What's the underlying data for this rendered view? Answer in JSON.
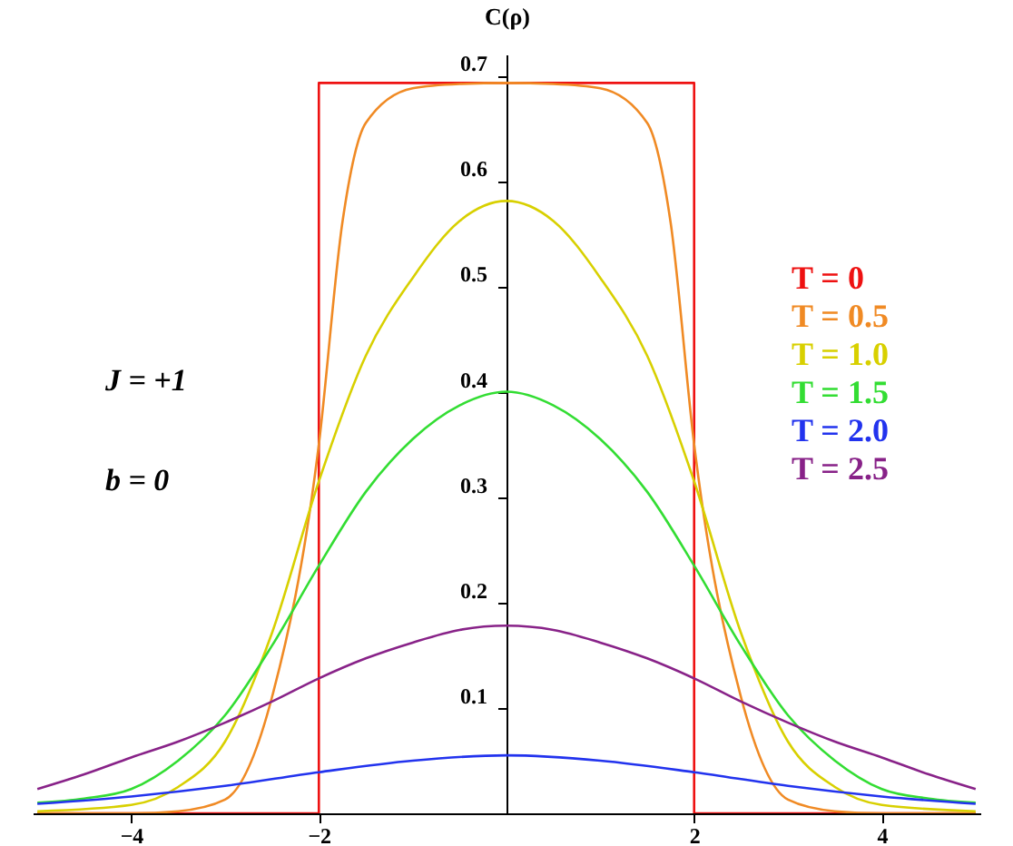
{
  "chart_data": {
    "type": "line",
    "ylabel": "C(ρ)",
    "xlim": [
      -5.05,
      5.05
    ],
    "ylim": [
      0,
      0.72
    ],
    "xticks": [
      -4,
      -2,
      2,
      4
    ],
    "yticks": [
      0.1,
      0.2,
      0.3,
      0.4,
      0.5,
      0.6,
      0.7
    ],
    "grid": false,
    "legend": "right",
    "marker": "none",
    "line_style": "solid",
    "annotations": [
      "J = +1",
      "b = 0"
    ],
    "series": [
      {
        "name": "T = 0",
        "color": "#ee1111",
        "x": [
          -5,
          -2,
          -2,
          2,
          2,
          5
        ],
        "values": [
          0,
          0,
          0.693,
          0.693,
          0,
          0
        ]
      },
      {
        "name": "T = 0.5",
        "color": "#f08a24",
        "x": [
          -5,
          -4,
          -3.5,
          -3,
          -2.5,
          -2,
          -1.75,
          -1.5,
          -1,
          -0.5,
          0,
          0.5,
          1,
          1.5,
          1.75,
          2,
          2.5,
          3,
          3.5,
          4,
          5
        ],
        "values": [
          0,
          0,
          0.002,
          0.013,
          0.11,
          0.35,
          0.56,
          0.655,
          0.688,
          0.692,
          0.693,
          0.692,
          0.688,
          0.655,
          0.56,
          0.35,
          0.11,
          0.013,
          0.002,
          0,
          0
        ]
      },
      {
        "name": "T = 1.0",
        "color": "#d8d000",
        "x": [
          -5,
          -4,
          -3.5,
          -3,
          -2.5,
          -2,
          -1.5,
          -1,
          -0.5,
          0,
          0.5,
          1,
          1.5,
          2,
          2.5,
          3,
          3.5,
          4,
          5
        ],
        "values": [
          0.002,
          0.008,
          0.025,
          0.068,
          0.171,
          0.315,
          0.434,
          0.508,
          0.562,
          0.581,
          0.562,
          0.508,
          0.434,
          0.315,
          0.171,
          0.068,
          0.025,
          0.008,
          0.002
        ]
      },
      {
        "name": "T = 1.5",
        "color": "#33dd33",
        "x": [
          -5,
          -4.5,
          -4,
          -3.5,
          -3,
          -2.5,
          -2,
          -1.5,
          -1,
          -0.5,
          0,
          0.5,
          1,
          1.5,
          2,
          2.5,
          3,
          3.5,
          4,
          4.5,
          5
        ],
        "values": [
          0.01,
          0.014,
          0.023,
          0.05,
          0.093,
          0.159,
          0.235,
          0.305,
          0.355,
          0.387,
          0.4,
          0.387,
          0.355,
          0.305,
          0.235,
          0.159,
          0.093,
          0.05,
          0.023,
          0.014,
          0.01
        ]
      },
      {
        "name": "T = 2.0",
        "color": "#2233ee",
        "x": [
          -5,
          -4,
          -3,
          -2,
          -1,
          0,
          1,
          2,
          3,
          4,
          5
        ],
        "values": [
          0.009,
          0.016,
          0.026,
          0.039,
          0.05,
          0.055,
          0.05,
          0.039,
          0.026,
          0.016,
          0.009
        ]
      },
      {
        "name": "T = 2.5",
        "color": "#882288",
        "x": [
          -5,
          -4.5,
          -4,
          -3.5,
          -3,
          -2.5,
          -2,
          -1.5,
          -1,
          -0.5,
          0,
          0.5,
          1,
          1.5,
          2,
          2.5,
          3,
          3.5,
          4,
          4.5,
          5
        ],
        "values": [
          0.023,
          0.037,
          0.053,
          0.068,
          0.086,
          0.106,
          0.128,
          0.147,
          0.162,
          0.174,
          0.178,
          0.174,
          0.162,
          0.147,
          0.128,
          0.106,
          0.086,
          0.068,
          0.053,
          0.037,
          0.023
        ]
      }
    ]
  }
}
